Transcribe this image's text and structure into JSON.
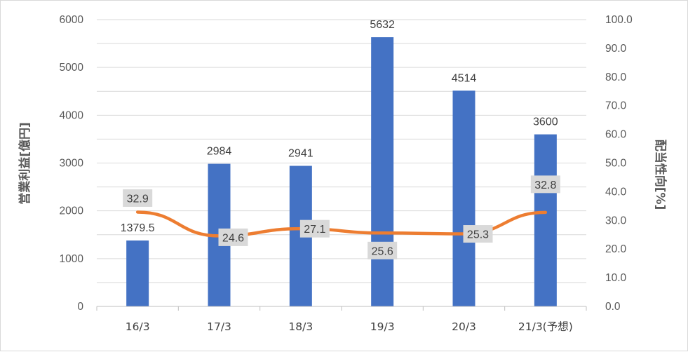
{
  "chart_data": {
    "type": "bar+line",
    "categories": [
      "16/3",
      "17/3",
      "18/3",
      "19/3",
      "20/3",
      "21/3(予想)"
    ],
    "series": [
      {
        "axis": "left",
        "type": "bar",
        "values": [
          1379.5,
          2984,
          2941,
          5632,
          4514,
          3600
        ],
        "labels": [
          "1379.5",
          "2984",
          "2941",
          "5632",
          "4514",
          "3600"
        ],
        "color": "#4472C4"
      },
      {
        "axis": "right",
        "type": "line",
        "values": [
          32.9,
          24.6,
          27.1,
          25.6,
          25.3,
          32.8
        ],
        "labels": [
          "32.9",
          "24.6",
          "27.1",
          "25.6",
          "25.3",
          "32.8"
        ],
        "color": "#ED7D31"
      }
    ],
    "ylabel": "営業利益[億円]",
    "y2label": "配当性向[%]",
    "ylim": [
      0,
      6000
    ],
    "y2lim": [
      0,
      100
    ],
    "yticks": [
      "0",
      "1000",
      "2000",
      "3000",
      "4000",
      "5000",
      "6000"
    ],
    "y2ticks": [
      "0.0",
      "10.0",
      "20.0",
      "30.0",
      "40.0",
      "50.0",
      "60.0",
      "70.0",
      "80.0",
      "90.0",
      "100.0"
    ],
    "grid": true,
    "label_box_color": "#D9D9D9",
    "gridline_color": "#D9D9D9"
  }
}
